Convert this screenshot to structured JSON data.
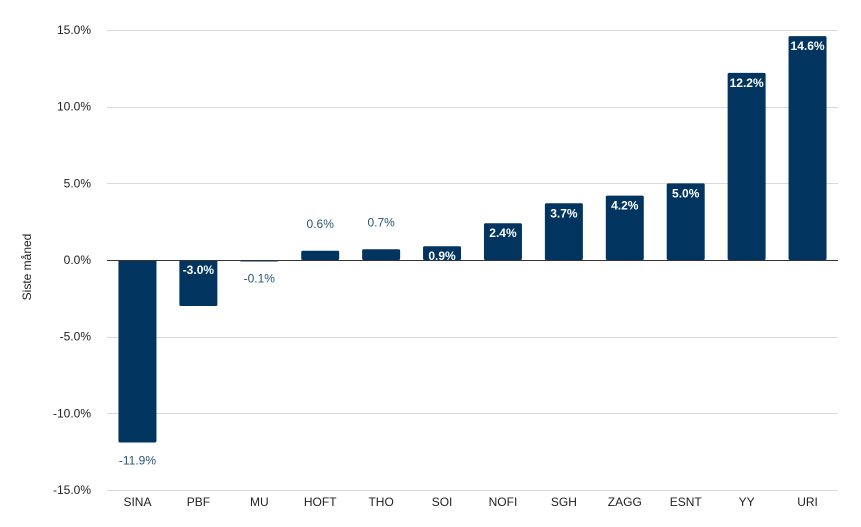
{
  "chart_data": {
    "type": "bar",
    "title": "",
    "xlabel": "",
    "ylabel": "Siste måned",
    "ylim": [
      -15,
      15
    ],
    "yticks": [
      15,
      10,
      5,
      0,
      -5,
      -10,
      -15
    ],
    "ytick_labels": [
      "15.0%",
      "10.0%",
      "5.0%",
      "0.0%",
      "-5.0%",
      "-10.0%",
      "-15.0%"
    ],
    "categories": [
      "SINA",
      "PBF",
      "MU",
      "HOFT",
      "THO",
      "SOI",
      "NOFI",
      "SGH",
      "ZAGG",
      "ESNT",
      "YY",
      "URI"
    ],
    "values": [
      -11.9,
      -3.0,
      -0.1,
      0.6,
      0.7,
      0.9,
      2.4,
      3.7,
      4.2,
      5.0,
      12.2,
      14.6
    ],
    "data_labels": [
      "-11.9%",
      "-3.0%",
      "-0.1%",
      "0.6%",
      "0.7%",
      "0.9%",
      "2.4%",
      "3.7%",
      "4.2%",
      "5.0%",
      "12.2%",
      "14.6%"
    ],
    "bar_color": "#013560",
    "grid": true,
    "legend": "none"
  }
}
